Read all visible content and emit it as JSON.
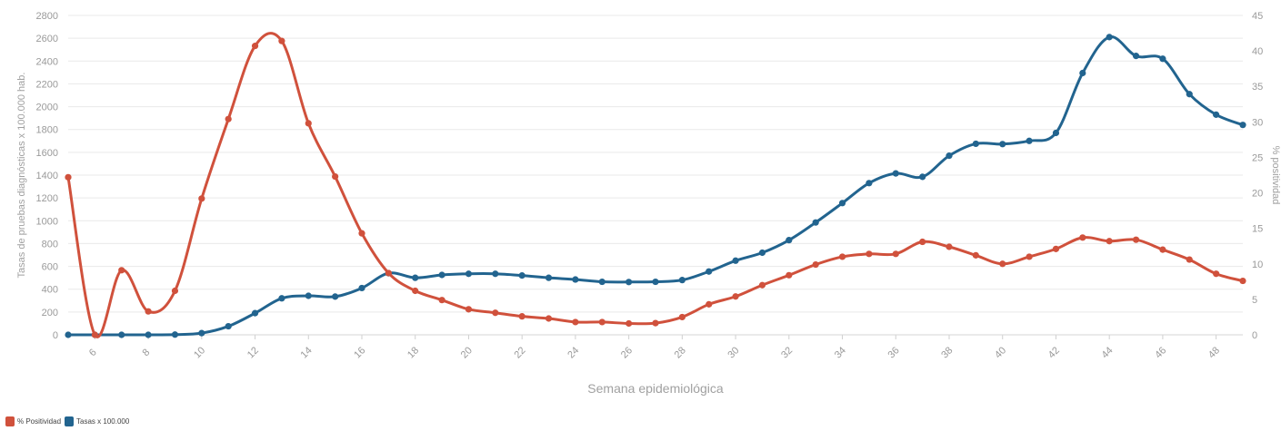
{
  "chart_data": {
    "type": "line",
    "xlabel": "Semana epidemiológica",
    "ylabel_left": "Tasas de pruebas diagnósticas x 100.000 hab.",
    "ylabel_right": "% positividad",
    "ylim_left": [
      0,
      2800
    ],
    "ylim_right": [
      0,
      45
    ],
    "yticks_left": [
      0,
      200,
      400,
      600,
      800,
      1000,
      1200,
      1400,
      1600,
      1800,
      2000,
      2200,
      2400,
      2600,
      2800
    ],
    "yticks_right": [
      0,
      5,
      10,
      15,
      20,
      25,
      30,
      35,
      40,
      45
    ],
    "x": [
      5,
      6,
      7,
      8,
      9,
      10,
      11,
      12,
      13,
      14,
      15,
      16,
      17,
      18,
      19,
      20,
      21,
      22,
      23,
      24,
      25,
      26,
      27,
      28,
      29,
      30,
      31,
      32,
      33,
      34,
      35,
      36,
      37,
      38,
      39,
      40,
      41,
      42,
      43,
      44,
      45,
      46,
      47,
      48,
      49
    ],
    "xticks": [
      6,
      8,
      10,
      12,
      14,
      16,
      18,
      20,
      22,
      24,
      26,
      28,
      30,
      32,
      34,
      36,
      38,
      40,
      42,
      44,
      46,
      48
    ],
    "grid": true,
    "legend_position": "bottom-left",
    "series": [
      {
        "name": "% Positividad",
        "axis": "right",
        "color": "#d0513c",
        "values": [
          22.2,
          0,
          9.1,
          3.3,
          6.2,
          19.2,
          30.4,
          40.7,
          41.4,
          29.8,
          22.3,
          14.3,
          8.7,
          6.2,
          4.9,
          3.6,
          3.1,
          2.6,
          2.3,
          1.8,
          1.8,
          1.6,
          1.65,
          2.5,
          4.3,
          5.4,
          7.0,
          8.4,
          9.9,
          11.0,
          11.4,
          11.4,
          13.1,
          12.4,
          11.2,
          10.0,
          11.0,
          12.1,
          13.7,
          13.2,
          13.4,
          12.0,
          10.6,
          8.6,
          7.6
        ]
      },
      {
        "name": "Tasas x 100.000",
        "axis": "left",
        "color": "#22648f",
        "values": [
          0,
          0,
          0,
          0,
          2,
          15,
          75,
          190,
          320,
          342,
          335,
          410,
          540,
          500,
          525,
          535,
          535,
          520,
          500,
          485,
          465,
          463,
          465,
          480,
          555,
          650,
          720,
          830,
          985,
          1155,
          1330,
          1415,
          1385,
          1570,
          1675,
          1672,
          1700,
          1770,
          2295,
          2610,
          2445,
          2420,
          2110,
          1930,
          1840
        ]
      }
    ]
  }
}
